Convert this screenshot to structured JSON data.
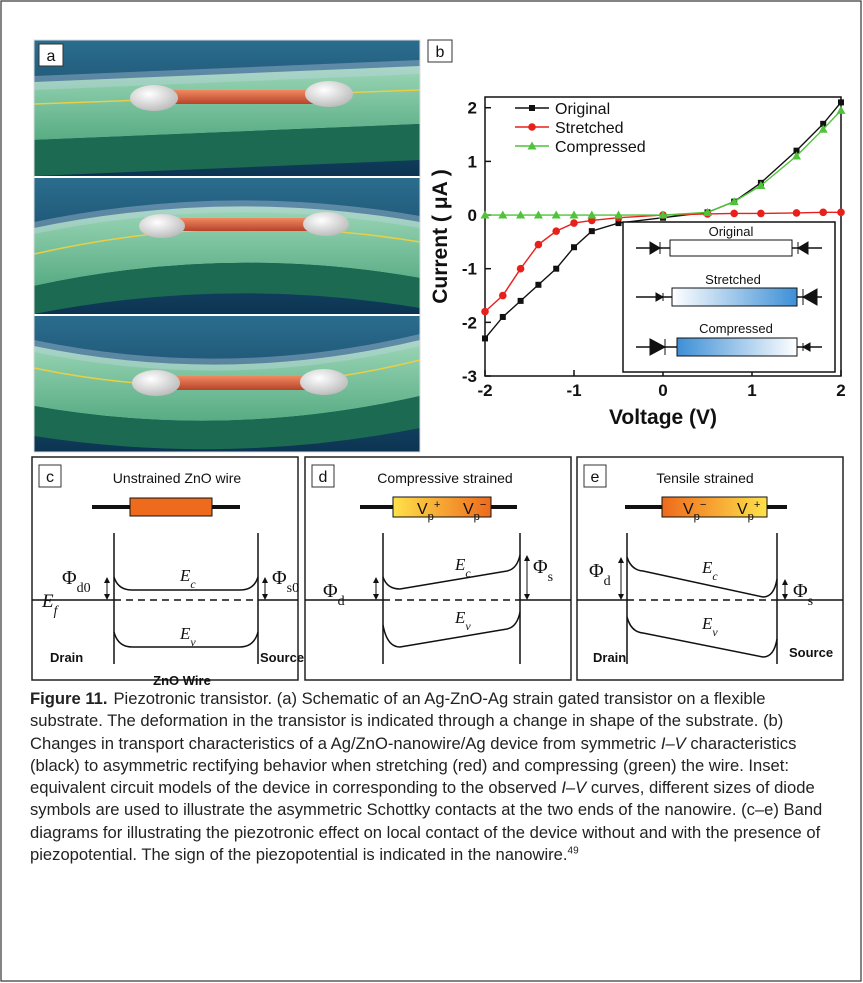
{
  "panel_labels": [
    "a",
    "b",
    "c",
    "d",
    "e"
  ],
  "chart_data": {
    "type": "line",
    "x_label": "Voltage (V)",
    "y_label": "Current ( μA )",
    "x": [
      -2,
      -1.8,
      -1.6,
      -1.4,
      -1.2,
      -1,
      -0.8,
      -0.5,
      0,
      0.5,
      0.8,
      1.1,
      1.5,
      1.8,
      2
    ],
    "series": [
      {
        "name": "Original",
        "color": "#111111",
        "marker": "square",
        "values": [
          -2.3,
          -1.9,
          -1.6,
          -1.3,
          -1.0,
          -0.6,
          -0.3,
          -0.15,
          -0.05,
          0.05,
          0.25,
          0.6,
          1.2,
          1.7,
          2.1
        ]
      },
      {
        "name": "Stretched",
        "color": "#e8201c",
        "marker": "circle",
        "values": [
          -1.8,
          -1.5,
          -1.0,
          -0.55,
          -0.3,
          -0.15,
          -0.1,
          -0.05,
          0,
          0.02,
          0.03,
          0.03,
          0.04,
          0.05,
          0.05
        ]
      },
      {
        "name": "Compressed",
        "color": "#4fc43a",
        "marker": "triangle",
        "values": [
          0,
          0,
          0,
          0,
          0,
          0,
          0,
          0,
          0,
          0.05,
          0.25,
          0.55,
          1.1,
          1.6,
          1.95
        ]
      }
    ],
    "xlim": [
      -2,
      2
    ],
    "xticks": [
      -2,
      -1,
      0,
      1,
      2
    ],
    "ylim": [
      -3,
      2.2
    ],
    "yticks": [
      -3,
      -2,
      -1,
      0,
      1,
      2
    ],
    "legend": "top-left"
  },
  "inset": {
    "labels": [
      "Original",
      "Stretched",
      "Compressed"
    ]
  },
  "band_diagrams": [
    {
      "title": "Unstrained ZnO wire",
      "phi_d": {
        "main": "Φ",
        "sub": "d0"
      },
      "phi_s": {
        "main": "Φ",
        "sub": "s0"
      },
      "fermi": {
        "main": "E",
        "sub": "f"
      },
      "ec": {
        "main": "E",
        "sub": "c"
      },
      "ev": {
        "main": "E",
        "sub": "v"
      },
      "drain": "Drain",
      "source": "Source",
      "wire": "ZnO Wire"
    },
    {
      "title": "Compressive strained",
      "vp_left": {
        "main": "V",
        "sub": "p",
        "sup": "+"
      },
      "vp_right": {
        "main": "V",
        "sub": "p",
        "sup": "−"
      },
      "phi_d": {
        "main": "Φ",
        "sub": "d"
      },
      "phi_s": {
        "main": "Φ",
        "sub": "s"
      },
      "ec": {
        "main": "E",
        "sub": "c"
      },
      "ev": {
        "main": "E",
        "sub": "v"
      }
    },
    {
      "title": "Tensile strained",
      "vp_left": {
        "main": "V",
        "sub": "p",
        "sup": "−"
      },
      "vp_right": {
        "main": "V",
        "sub": "p",
        "sup": "+"
      },
      "phi_d": {
        "main": "Φ",
        "sub": "d"
      },
      "phi_s": {
        "main": "Φ",
        "sub": "s"
      },
      "ec": {
        "main": "E",
        "sub": "c"
      },
      "ev": {
        "main": "E",
        "sub": "v"
      },
      "drain": "Drain",
      "source": "Source"
    }
  ],
  "caption": {
    "label": "Figure 11.",
    "parts": [
      "Piezotronic transistor. (a) Schematic of an Ag-ZnO-Ag strain gated transistor on a flexible substrate. The deformation in the transistor is indicated through a change in shape of the substrate. (b) Changes in transport characteristics of a Ag/ZnO-nanowire/Ag device from symmetric ",
      "I–V",
      " characteristics (black) to asymmetric rectifying behavior when stretching (red) and compressing (green) the wire. Inset: equivalent circuit models of the device in corresponding to the observed ",
      "I–V",
      " curves, different sizes of diode symbols are used to illustrate the asymmetric Schottky contacts at the two ends of the nanowire. (c–e) Band diagrams for illustrating the piezotronic effect on local contact of the device without and with the presence of piezopotential. The sign of the piezopotential is indicated in the nanowire.",
      "49"
    ]
  }
}
